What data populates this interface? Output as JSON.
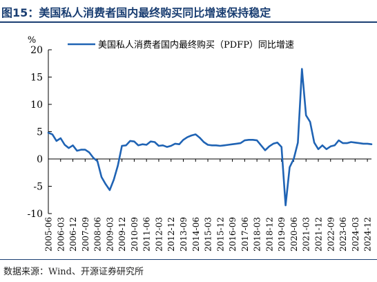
{
  "header": {
    "title": "图15：美国私人消费者国内最终购买同比增速保持稳定"
  },
  "footer": {
    "source": "数据来源：Wind、开源证券研究所"
  },
  "colors": {
    "title": "#1a3e72",
    "series": "#1f63b4",
    "axis": "#000000"
  },
  "chart_data": {
    "type": "line",
    "title": "",
    "xlabel": "",
    "ylabel": "%",
    "ylim": [
      -10,
      20
    ],
    "yticks": [
      20,
      15,
      10,
      5,
      0,
      -5,
      -10
    ],
    "grid": false,
    "legend": {
      "position": "top",
      "entries": [
        "美国私人消费者国内最终购买（PDFP）同比增速"
      ]
    },
    "xticklabels": [
      "2005-06",
      "2006-03",
      "2006-12",
      "2007-09",
      "2008-06",
      "2009-03",
      "2009-12",
      "2010-09",
      "2011-06",
      "2012-03",
      "2012-12",
      "2013-09",
      "2014-06",
      "2015-03",
      "2015-12",
      "2016-09",
      "2017-06",
      "2018-03",
      "2018-12",
      "2019-09",
      "2020-06",
      "2021-03",
      "2021-12",
      "2022-09",
      "2023-06",
      "2024-03",
      "2024-12"
    ],
    "x": [
      "2005-06",
      "2005-09",
      "2005-12",
      "2006-03",
      "2006-06",
      "2006-09",
      "2006-12",
      "2007-03",
      "2007-06",
      "2007-09",
      "2007-12",
      "2008-03",
      "2008-06",
      "2008-09",
      "2008-12",
      "2009-03",
      "2009-06",
      "2009-09",
      "2009-12",
      "2010-03",
      "2010-06",
      "2010-09",
      "2010-12",
      "2011-03",
      "2011-06",
      "2011-09",
      "2011-12",
      "2012-03",
      "2012-06",
      "2012-09",
      "2012-12",
      "2013-03",
      "2013-06",
      "2013-09",
      "2013-12",
      "2014-03",
      "2014-06",
      "2014-09",
      "2014-12",
      "2015-03",
      "2015-06",
      "2015-09",
      "2015-12",
      "2016-03",
      "2016-06",
      "2016-09",
      "2016-12",
      "2017-03",
      "2017-06",
      "2017-09",
      "2017-12",
      "2018-03",
      "2018-06",
      "2018-09",
      "2018-12",
      "2019-03",
      "2019-06",
      "2019-09",
      "2019-12",
      "2020-03",
      "2020-06",
      "2020-09",
      "2020-12",
      "2021-03",
      "2021-06",
      "2021-09",
      "2021-12",
      "2022-03",
      "2022-06",
      "2022-09",
      "2022-12",
      "2023-03",
      "2023-06",
      "2023-09",
      "2023-12",
      "2024-03",
      "2024-06",
      "2024-09",
      "2024-12",
      "2025-03"
    ],
    "series": [
      {
        "name": "美国私人消费者国内最终购买（PDFP）同比增速",
        "values": [
          4.8,
          4.5,
          3.3,
          3.8,
          2.6,
          2.0,
          2.5,
          1.5,
          1.7,
          1.7,
          1.2,
          0.2,
          -0.4,
          -3.3,
          -4.6,
          -5.7,
          -3.8,
          -1.2,
          2.4,
          2.5,
          3.3,
          3.2,
          2.5,
          2.7,
          2.6,
          3.2,
          3.1,
          2.4,
          2.5,
          2.2,
          2.4,
          2.8,
          2.7,
          3.5,
          4.0,
          4.3,
          4.5,
          3.9,
          3.1,
          2.6,
          2.5,
          2.5,
          2.4,
          2.5,
          2.6,
          2.7,
          2.8,
          2.9,
          3.4,
          3.5,
          3.5,
          3.4,
          2.5,
          1.6,
          2.3,
          2.8,
          3.0,
          2.2,
          -8.5,
          -1.5,
          0.0,
          3.0,
          16.5,
          8.0,
          6.8,
          3.0,
          1.8,
          2.5,
          1.8,
          2.3,
          2.5,
          3.4,
          2.9,
          2.9,
          3.1,
          3.0,
          2.9,
          2.8,
          2.8,
          2.7
        ]
      }
    ]
  }
}
